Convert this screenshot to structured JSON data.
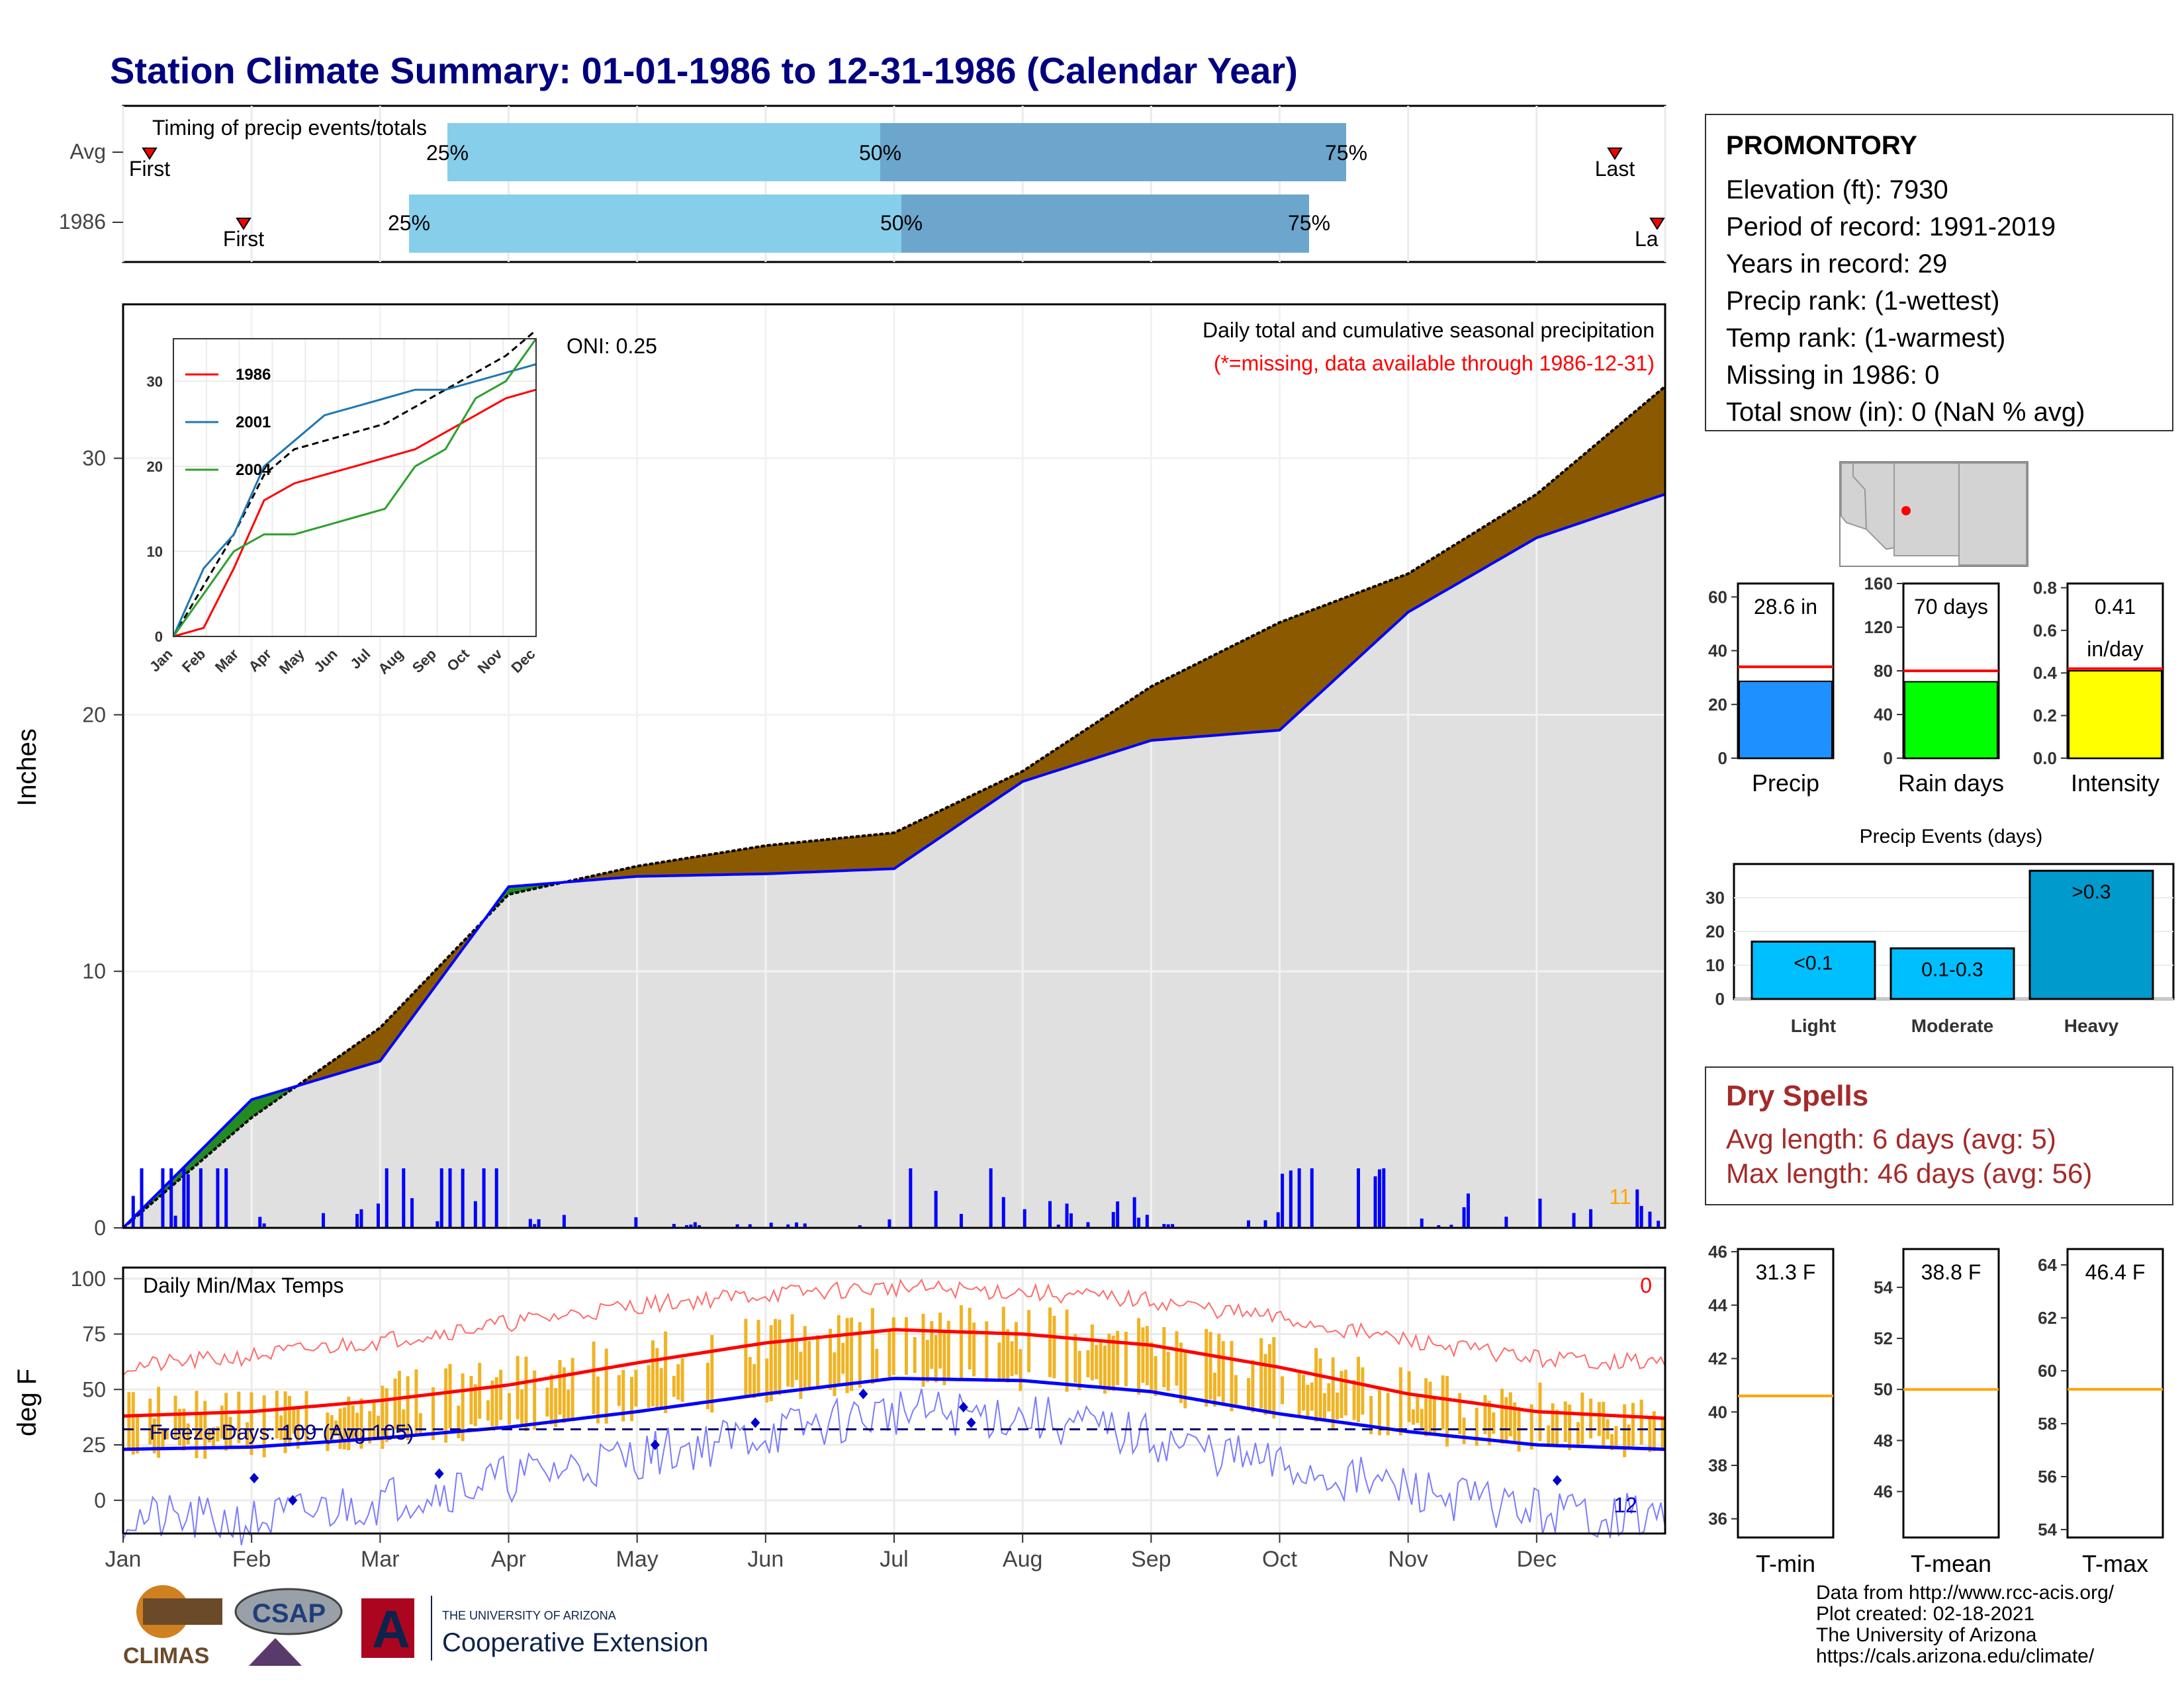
{
  "title": "Station Climate Summary: 01-01-1986 to 12-31-1986 (Calendar Year)",
  "colors": {
    "title": "#000080",
    "precip_fill": "#8b5a00",
    "deficit_fill": "#228b22",
    "cum_line": "#0000ff",
    "bg_gray": "#e0e0e0",
    "bar_light": "#87ceeb",
    "bar_dark": "#6ca6cd",
    "marker": "#ff0000",
    "dry_red": "#a52a2a",
    "precip_bar": "#1e90ff",
    "rain_bar": "#00ff00",
    "intensity_bar": "#ffff00",
    "event_bar": "#00bfff",
    "event_heavy": "#009acd",
    "temp_bar": "#f0b323",
    "avg_line": "#ffa500"
  },
  "timing": {
    "title": "Timing of precip events/totals",
    "rows": [
      {
        "label": "Avg",
        "first": "First",
        "last": "Last",
        "p25": "25%",
        "p50": "50%",
        "p75": "75%"
      },
      {
        "label": "1986",
        "first": "First",
        "last": "La",
        "p25": "25%",
        "p50": "50%",
        "p75": "75%"
      }
    ]
  },
  "precip_panel": {
    "ylabel": "Inches",
    "yticks": [
      "0",
      "10",
      "20",
      "30"
    ],
    "caption": "Daily total and cumulative seasonal precipitation",
    "missing_note": "(*=missing, data available through 1986-12-31)",
    "oni": "ONI: 0.25",
    "count_label": "11"
  },
  "inset": {
    "yticks": [
      "0",
      "10",
      "20",
      "30"
    ],
    "xticks": [
      "Jan",
      "Feb",
      "Mar",
      "Apr",
      "May",
      "Jun",
      "Jul",
      "Aug",
      "Sep",
      "Oct",
      "Nov",
      "Dec"
    ],
    "legend": [
      {
        "name": "1986",
        "color": "#ff0000"
      },
      {
        "name": "2001",
        "color": "#1f77b4"
      },
      {
        "name": "2004",
        "color": "#2ca02c"
      }
    ]
  },
  "temp_panel": {
    "ylabel": "deg F",
    "title": "Daily Min/Max Temps",
    "freeze": "Freeze Days: 109 (Avg:105)",
    "missing_count": "0",
    "count_label": "12",
    "yticks": [
      "0",
      "25",
      "50",
      "75",
      "100"
    ]
  },
  "months": [
    "Jan",
    "Feb",
    "Mar",
    "Apr",
    "May",
    "Jun",
    "Jul",
    "Aug",
    "Sep",
    "Oct",
    "Nov",
    "Dec"
  ],
  "station": {
    "name": "PROMONTORY",
    "lines": [
      "Elevation (ft): 7930",
      "Period of record: 1991-2019",
      "Years in record: 29",
      "Precip rank:  (1-wettest)",
      "Temp rank:  (1-warmest)",
      "Missing in 1986: 0",
      "Total snow (in): 0 (NaN % avg)"
    ]
  },
  "small_bars": [
    {
      "label": "Precip",
      "value_text": "28.6 in",
      "value": 28.6,
      "avg": 34,
      "ymax": 65,
      "yticks": [
        "0",
        "20",
        "40",
        "60"
      ],
      "color": "#1e90ff"
    },
    {
      "label": "Rain days",
      "value_text": "70 days",
      "value": 70,
      "avg": 80,
      "ymax": 160,
      "yticks": [
        "0",
        "40",
        "80",
        "120",
        "160"
      ],
      "color": "#00ff00"
    },
    {
      "label": "Intensity",
      "value_text": "0.41",
      "value_text2": "in/day",
      "value": 0.41,
      "avg": 0.42,
      "ymax": 0.82,
      "yticks": [
        "0.0",
        "0.2",
        "0.4",
        "0.6",
        "0.8"
      ],
      "color": "#ffff00"
    }
  ],
  "events": {
    "title": "Precip Events (days)",
    "yticks": [
      "0",
      "10",
      "20",
      "30"
    ],
    "bars": [
      {
        "label": "Light",
        "value_text": "<0.1",
        "value": 17
      },
      {
        "label": "Moderate",
        "value_text": "0.1-0.3",
        "value": 15
      },
      {
        "label": "Heavy",
        "value_text": ">0.3",
        "value": 38
      }
    ]
  },
  "dry_spells": {
    "title": "Dry Spells",
    "lines": [
      "Avg length: 6 days (avg: 5)",
      "Max length: 46 days (avg: 56)"
    ]
  },
  "temp_bars": [
    {
      "label": "T-min",
      "value_text": "31.3 F",
      "avg": 40.6,
      "yticks": [
        "36",
        "38",
        "40",
        "42",
        "44",
        "46"
      ],
      "ymin": 35.3,
      "ymax": 46.1
    },
    {
      "label": "T-mean",
      "value_text": "38.8 F",
      "avg": 50,
      "yticks": [
        "46",
        "48",
        "50",
        "52",
        "54"
      ],
      "ymin": 44.2,
      "ymax": 55.5
    },
    {
      "label": "T-max",
      "value_text": "46.4 F",
      "avg": 59.3,
      "yticks": [
        "54",
        "56",
        "58",
        "60",
        "62",
        "64"
      ],
      "ymin": 53.7,
      "ymax": 64.6
    }
  ],
  "chart_data": [
    {
      "type": "area",
      "title": "Daily total and cumulative seasonal precipitation",
      "ylabel": "Inches",
      "ylim": [
        0,
        36
      ],
      "x": [
        "Jan",
        "Feb",
        "Mar",
        "Apr",
        "May",
        "Jun",
        "Jul",
        "Aug",
        "Sep",
        "Oct",
        "Nov",
        "Dec",
        "Dec-31"
      ],
      "series": [
        {
          "name": "1986",
          "values": [
            0.0,
            5.0,
            6.5,
            13.3,
            13.7,
            13.8,
            14.0,
            17.4,
            19.0,
            19.4,
            24.0,
            26.9,
            28.6
          ]
        },
        {
          "name": "Avg",
          "values": [
            0.0,
            4.3,
            7.8,
            13.0,
            14.1,
            14.9,
            15.4,
            17.8,
            21.1,
            23.6,
            25.5,
            28.6,
            32.8
          ]
        }
      ]
    },
    {
      "type": "line",
      "title": "Daily Min/Max Temps",
      "ylabel": "deg F",
      "ylim": [
        -15,
        105
      ],
      "x": [
        "Jan",
        "Feb",
        "Mar",
        "Apr",
        "May",
        "Jun",
        "Jul",
        "Aug",
        "Sep",
        "Oct",
        "Nov",
        "Dec",
        "Dec-31"
      ],
      "series": [
        {
          "name": "Avg max",
          "values": [
            38,
            40,
            45,
            52,
            62,
            71,
            77,
            75,
            70,
            60,
            48,
            40,
            37
          ]
        },
        {
          "name": "Avg min",
          "values": [
            23,
            24,
            28,
            33,
            40,
            48,
            55,
            54,
            49,
            39,
            31,
            25,
            23
          ]
        },
        {
          "name": "Record max",
          "values": [
            60,
            65,
            72,
            80,
            88,
            93,
            96,
            94,
            90,
            82,
            72,
            64,
            62
          ]
        },
        {
          "name": "Record min",
          "values": [
            -8,
            -10,
            0,
            10,
            20,
            30,
            40,
            38,
            28,
            15,
            5,
            -5,
            -8
          ]
        }
      ]
    },
    {
      "type": "line",
      "x": [
        "Jan",
        "Feb",
        "Mar",
        "Apr",
        "May",
        "Jun",
        "Jul",
        "Aug",
        "Sep",
        "Oct",
        "Nov",
        "Dec",
        "Dec-31"
      ],
      "ylim": [
        0,
        35
      ],
      "series": [
        {
          "name": "1986",
          "values": [
            0,
            1,
            8,
            16,
            18,
            19,
            20,
            21,
            22,
            24,
            26,
            28,
            29
          ]
        },
        {
          "name": "2001",
          "values": [
            0,
            8,
            12,
            20,
            23,
            26,
            27,
            28,
            29,
            29,
            30,
            31,
            32
          ]
        },
        {
          "name": "2004",
          "values": [
            0,
            5,
            10,
            12,
            12,
            13,
            14,
            15,
            20,
            22,
            28,
            30,
            35
          ]
        }
      ]
    }
  ]
}
